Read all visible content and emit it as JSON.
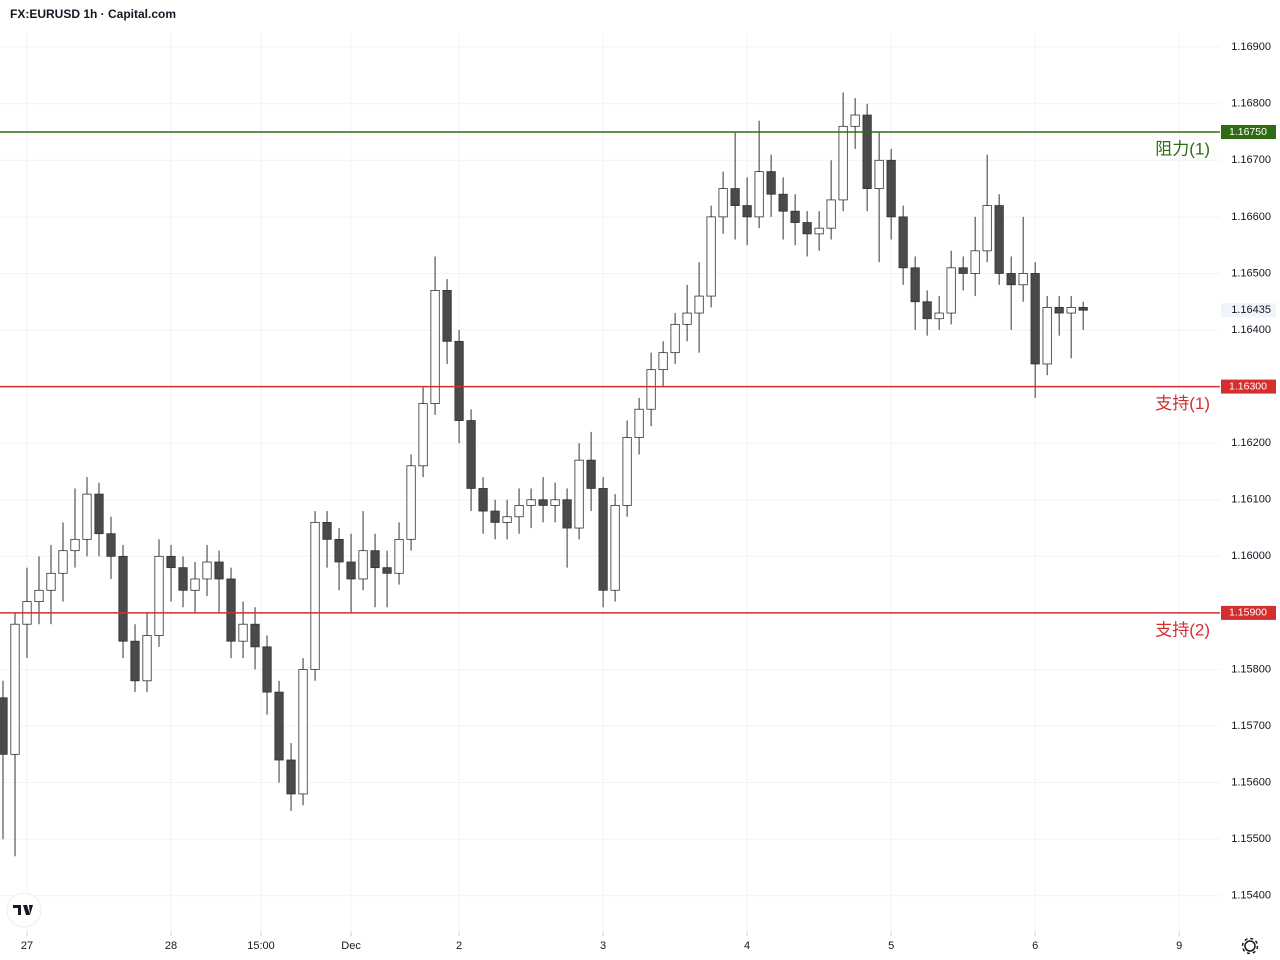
{
  "chart_data": {
    "type": "candlestick",
    "title": "FX:EURUSD 1h · Capital.com",
    "x": [
      -4,
      -2,
      0,
      2,
      4,
      6,
      8,
      10,
      12,
      14,
      16,
      18,
      20,
      22,
      24,
      26,
      28,
      30,
      32,
      34,
      36,
      38,
      40,
      42,
      44,
      46,
      48,
      50,
      52,
      54,
      56,
      58,
      60,
      62,
      64,
      66,
      68,
      70,
      72,
      74,
      76,
      78,
      80,
      82,
      84,
      86,
      88,
      90,
      92,
      94,
      96,
      98,
      100,
      102,
      104,
      106,
      108,
      110,
      112,
      114,
      116,
      118,
      120,
      122,
      124,
      126,
      128,
      130,
      132,
      134,
      136,
      138,
      140,
      142,
      144,
      146,
      148,
      150,
      152,
      154,
      156,
      158,
      160,
      162,
      164,
      166,
      168,
      170,
      172,
      174,
      176
    ],
    "candles": [
      [
        1.1575,
        1.1578,
        1.155,
        1.1565
      ],
      [
        1.1565,
        1.159,
        1.1547,
        1.1588
      ],
      [
        1.1588,
        1.1598,
        1.1582,
        1.1592
      ],
      [
        1.1592,
        1.16,
        1.1588,
        1.1594
      ],
      [
        1.1594,
        1.1602,
        1.1588,
        1.1597
      ],
      [
        1.1597,
        1.1606,
        1.1592,
        1.1601
      ],
      [
        1.1601,
        1.1612,
        1.1598,
        1.1603
      ],
      [
        1.1603,
        1.1614,
        1.16,
        1.1611
      ],
      [
        1.1611,
        1.1613,
        1.16,
        1.1604
      ],
      [
        1.1604,
        1.1607,
        1.1596,
        1.16
      ],
      [
        1.16,
        1.1602,
        1.1582,
        1.1585
      ],
      [
        1.1585,
        1.1588,
        1.1576,
        1.1578
      ],
      [
        1.1578,
        1.159,
        1.1576,
        1.1586
      ],
      [
        1.1586,
        1.1603,
        1.1584,
        1.16
      ],
      [
        1.16,
        1.1602,
        1.1592,
        1.1598
      ],
      [
        1.1598,
        1.16,
        1.1591,
        1.1594
      ],
      [
        1.1594,
        1.1599,
        1.159,
        1.1596
      ],
      [
        1.1596,
        1.1602,
        1.1593,
        1.1599
      ],
      [
        1.1599,
        1.1601,
        1.159,
        1.1596
      ],
      [
        1.1596,
        1.1598,
        1.1582,
        1.1585
      ],
      [
        1.1585,
        1.1592,
        1.1582,
        1.1588
      ],
      [
        1.1588,
        1.1591,
        1.158,
        1.1584
      ],
      [
        1.1584,
        1.1586,
        1.1572,
        1.1576
      ],
      [
        1.1576,
        1.1578,
        1.156,
        1.1564
      ],
      [
        1.1564,
        1.1567,
        1.1555,
        1.1558
      ],
      [
        1.1558,
        1.1582,
        1.1556,
        1.158
      ],
      [
        1.158,
        1.1608,
        1.1578,
        1.1606
      ],
      [
        1.1606,
        1.1608,
        1.1598,
        1.1603
      ],
      [
        1.1603,
        1.1605,
        1.1594,
        1.1599
      ],
      [
        1.1599,
        1.1604,
        1.159,
        1.1596
      ],
      [
        1.1596,
        1.1608,
        1.1594,
        1.1601
      ],
      [
        1.1601,
        1.1604,
        1.1591,
        1.1598
      ],
      [
        1.1598,
        1.1601,
        1.1591,
        1.1597
      ],
      [
        1.1597,
        1.1606,
        1.1595,
        1.1603
      ],
      [
        1.1603,
        1.1618,
        1.1601,
        1.1616
      ],
      [
        1.1616,
        1.163,
        1.1614,
        1.1627
      ],
      [
        1.1627,
        1.1653,
        1.1625,
        1.1647
      ],
      [
        1.1647,
        1.1649,
        1.1634,
        1.1638
      ],
      [
        1.1638,
        1.164,
        1.162,
        1.1624
      ],
      [
        1.1624,
        1.1626,
        1.1608,
        1.1612
      ],
      [
        1.1612,
        1.1614,
        1.1604,
        1.1608
      ],
      [
        1.1608,
        1.161,
        1.1603,
        1.1606
      ],
      [
        1.1606,
        1.161,
        1.1603,
        1.1607
      ],
      [
        1.1607,
        1.1612,
        1.1604,
        1.1609
      ],
      [
        1.1609,
        1.1612,
        1.1605,
        1.161
      ],
      [
        1.161,
        1.1614,
        1.1606,
        1.1609
      ],
      [
        1.1609,
        1.1613,
        1.1606,
        1.161
      ],
      [
        1.161,
        1.1612,
        1.1598,
        1.1605
      ],
      [
        1.1605,
        1.162,
        1.1603,
        1.1617
      ],
      [
        1.1617,
        1.1622,
        1.1608,
        1.1612
      ],
      [
        1.1612,
        1.1614,
        1.1591,
        1.1594
      ],
      [
        1.1594,
        1.1611,
        1.1592,
        1.1609
      ],
      [
        1.1609,
        1.1624,
        1.1607,
        1.1621
      ],
      [
        1.1621,
        1.1628,
        1.1618,
        1.1626
      ],
      [
        1.1626,
        1.1636,
        1.1623,
        1.1633
      ],
      [
        1.1633,
        1.1638,
        1.163,
        1.1636
      ],
      [
        1.1636,
        1.1643,
        1.1634,
        1.1641
      ],
      [
        1.1641,
        1.1648,
        1.1638,
        1.1643
      ],
      [
        1.1643,
        1.1652,
        1.1636,
        1.1646
      ],
      [
        1.1646,
        1.1662,
        1.1644,
        1.166
      ],
      [
        1.166,
        1.1668,
        1.1657,
        1.1665
      ],
      [
        1.1665,
        1.1675,
        1.1656,
        1.1662
      ],
      [
        1.1662,
        1.1667,
        1.1655,
        1.166
      ],
      [
        1.166,
        1.1677,
        1.1658,
        1.1668
      ],
      [
        1.1668,
        1.1671,
        1.166,
        1.1664
      ],
      [
        1.1664,
        1.1667,
        1.1656,
        1.1661
      ],
      [
        1.1661,
        1.1664,
        1.1655,
        1.1659
      ],
      [
        1.1659,
        1.1661,
        1.1653,
        1.1657
      ],
      [
        1.1657,
        1.1661,
        1.1654,
        1.1658
      ],
      [
        1.1658,
        1.167,
        1.1656,
        1.1663
      ],
      [
        1.1663,
        1.1682,
        1.1661,
        1.1676
      ],
      [
        1.1676,
        1.1681,
        1.1672,
        1.1678
      ],
      [
        1.1678,
        1.168,
        1.1661,
        1.1665
      ],
      [
        1.1665,
        1.1675,
        1.1652,
        1.167
      ],
      [
        1.167,
        1.1672,
        1.1656,
        1.166
      ],
      [
        1.166,
        1.1662,
        1.1648,
        1.1651
      ],
      [
        1.1651,
        1.1653,
        1.164,
        1.1645
      ],
      [
        1.1645,
        1.1647,
        1.1639,
        1.1642
      ],
      [
        1.1642,
        1.1646,
        1.164,
        1.1643
      ],
      [
        1.1643,
        1.1654,
        1.1641,
        1.1651
      ],
      [
        1.1651,
        1.1653,
        1.1647,
        1.165
      ],
      [
        1.165,
        1.166,
        1.1646,
        1.1654
      ],
      [
        1.1654,
        1.1671,
        1.1652,
        1.1662
      ],
      [
        1.1662,
        1.1664,
        1.1648,
        1.165
      ],
      [
        1.165,
        1.1653,
        1.164,
        1.1648
      ],
      [
        1.1648,
        1.166,
        1.1645,
        1.165
      ],
      [
        1.165,
        1.1652,
        1.1628,
        1.1634
      ],
      [
        1.1634,
        1.1646,
        1.1632,
        1.1644
      ],
      [
        1.1644,
        1.1646,
        1.1639,
        1.1643
      ],
      [
        1.1643,
        1.1646,
        1.1635,
        1.1644
      ],
      [
        1.1644,
        1.1645,
        1.164,
        1.16435
      ]
    ],
    "up_color": "#ffffff",
    "down_color": "#4a4a4a",
    "wick_color": "#333333",
    "xlim": [
      -4.5,
      198.8
    ],
    "xticks": [
      {
        "value": 0,
        "label": "27"
      },
      {
        "value": 24,
        "label": "28"
      },
      {
        "value": 39,
        "label": "15:00"
      },
      {
        "value": 54,
        "label": "Dec"
      },
      {
        "value": 72,
        "label": "2"
      },
      {
        "value": 96,
        "label": "3"
      },
      {
        "value": 120,
        "label": "4"
      },
      {
        "value": 144,
        "label": "5"
      },
      {
        "value": 168,
        "label": "6"
      },
      {
        "value": 192,
        "label": "9"
      }
    ],
    "ylim": [
      1.15336,
      1.16925
    ],
    "yticks": [
      {
        "value": 1.154,
        "label": "1.15400"
      },
      {
        "value": 1.155,
        "label": "1.15500"
      },
      {
        "value": 1.156,
        "label": "1.15600"
      },
      {
        "value": 1.157,
        "label": "1.15700"
      },
      {
        "value": 1.158,
        "label": "1.15800"
      },
      {
        "value": 1.159,
        "label": "1.15900"
      },
      {
        "value": 1.16,
        "label": "1.16000"
      },
      {
        "value": 1.161,
        "label": "1.16100"
      },
      {
        "value": 1.162,
        "label": "1.16200"
      },
      {
        "value": 1.163,
        "label": "1.16300"
      },
      {
        "value": 1.164,
        "label": "1.16400"
      },
      {
        "value": 1.165,
        "label": "1.16500"
      },
      {
        "value": 1.166,
        "label": "1.16600"
      },
      {
        "value": 1.167,
        "label": "1.16700"
      },
      {
        "value": 1.168,
        "label": "1.16800"
      },
      {
        "value": 1.169,
        "label": "1.16900"
      }
    ],
    "grid": true,
    "levels": [
      {
        "value": 1.1675,
        "label": "1.16750",
        "name": "阻力(1)",
        "color": "#2e6b12"
      },
      {
        "value": 1.163,
        "label": "1.16300",
        "name": "支持(1)",
        "color": "#d32f2f"
      },
      {
        "value": 1.159,
        "label": "1.15900",
        "name": "支持(2)",
        "color": "#d32f2f"
      }
    ],
    "last_price": {
      "value": 1.16435,
      "label": "1.16435"
    }
  }
}
